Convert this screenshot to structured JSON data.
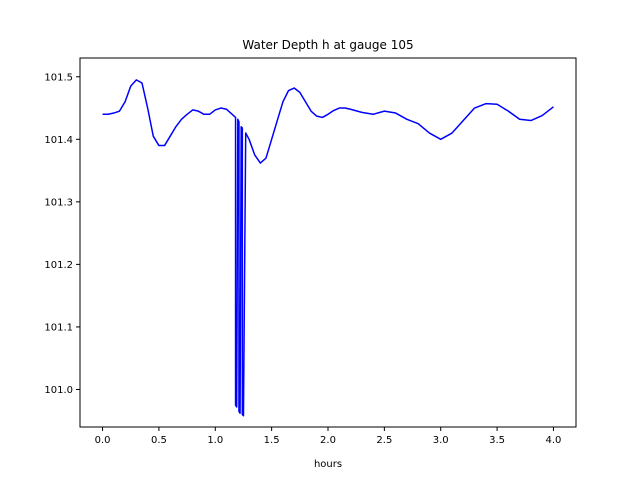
{
  "chart_data": {
    "type": "line",
    "title": "Water Depth h at gauge 105",
    "xlabel": "hours",
    "ylabel": "",
    "xlim": [
      -0.2,
      4.2
    ],
    "ylim": [
      100.94,
      101.53
    ],
    "grid": false,
    "xticks": [
      0.0,
      0.5,
      1.0,
      1.5,
      2.0,
      2.5,
      3.0,
      3.5,
      4.0
    ],
    "xtick_labels": [
      "0.0",
      "0.5",
      "1.0",
      "1.5",
      "2.0",
      "2.5",
      "3.0",
      "3.5",
      "4.0"
    ],
    "yticks": [
      101.0,
      101.1,
      101.2,
      101.3,
      101.4,
      101.5
    ],
    "ytick_labels": [
      "101.0",
      "101.1",
      "101.2",
      "101.3",
      "101.4",
      "101.5"
    ],
    "series": [
      {
        "color": "#0000ff",
        "x": [
          0.0,
          0.05,
          0.1,
          0.15,
          0.2,
          0.25,
          0.3,
          0.35,
          0.4,
          0.45,
          0.5,
          0.55,
          0.6,
          0.65,
          0.7,
          0.75,
          0.8,
          0.85,
          0.9,
          0.95,
          1.0,
          1.05,
          1.1,
          1.15,
          1.18,
          1.18,
          1.19,
          1.2,
          1.21,
          1.21,
          1.22,
          1.23,
          1.24,
          1.24,
          1.25,
          1.27,
          1.3,
          1.35,
          1.4,
          1.45,
          1.5,
          1.55,
          1.6,
          1.65,
          1.7,
          1.75,
          1.8,
          1.85,
          1.9,
          1.95,
          2.0,
          2.05,
          2.1,
          2.15,
          2.2,
          2.3,
          2.4,
          2.5,
          2.6,
          2.7,
          2.8,
          2.9,
          3.0,
          3.1,
          3.2,
          3.3,
          3.4,
          3.5,
          3.6,
          3.7,
          3.8,
          3.9,
          4.0
        ],
        "y": [
          101.44,
          101.44,
          101.442,
          101.445,
          101.46,
          101.485,
          101.495,
          101.49,
          101.45,
          101.405,
          101.39,
          101.39,
          101.405,
          101.42,
          101.432,
          101.44,
          101.447,
          101.445,
          101.44,
          101.44,
          101.447,
          101.45,
          101.448,
          101.44,
          101.435,
          100.975,
          100.972,
          101.432,
          101.428,
          100.965,
          100.962,
          101.42,
          101.418,
          100.96,
          100.958,
          101.41,
          101.4,
          101.375,
          101.362,
          101.37,
          101.4,
          101.43,
          101.46,
          101.478,
          101.482,
          101.475,
          101.46,
          101.445,
          101.437,
          101.435,
          101.44,
          101.446,
          101.45,
          101.45,
          101.448,
          101.443,
          101.44,
          101.445,
          101.442,
          101.432,
          101.425,
          101.41,
          101.4,
          101.41,
          101.43,
          101.45,
          101.457,
          101.456,
          101.445,
          101.432,
          101.43,
          101.438,
          101.452
        ]
      }
    ]
  }
}
